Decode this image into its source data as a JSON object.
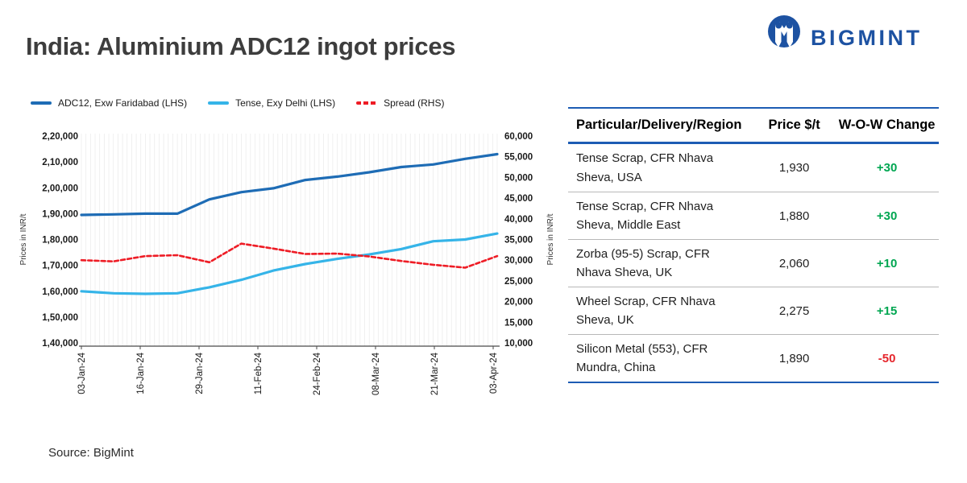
{
  "header": {
    "title": "India: Aluminium ADC12 ingot prices",
    "brand": "BIGMINT",
    "brand_color": "#1d52a2"
  },
  "chart_data": {
    "type": "line",
    "x_tick_labels": [
      "03-Jan-24",
      "16-Jan-24",
      "29-Jan-24",
      "11-Feb-24",
      "24-Feb-24",
      "08-Mar-24",
      "21-Mar-24",
      "03-Apr-24"
    ],
    "x_points": [
      "03-Jan",
      "10-Jan",
      "17-Jan",
      "24-Jan",
      "31-Jan",
      "07-Feb",
      "14-Feb",
      "21-Feb",
      "28-Feb",
      "06-Mar",
      "13-Mar",
      "20-Mar",
      "27-Mar",
      "03-Apr"
    ],
    "series": [
      {
        "name": "ADC12, Exw Faridabad (LHS)",
        "axis": "left",
        "color": "#1e6cb5",
        "style": "solid",
        "values": [
          189500,
          189700,
          190000,
          190000,
          195500,
          198300,
          199800,
          203000,
          204300,
          206000,
          208000,
          209000,
          211200,
          213000
        ]
      },
      {
        "name": "Tense, Exy Delhi (LHS)",
        "axis": "left",
        "color": "#35b4e8",
        "style": "solid",
        "values": [
          160000,
          159200,
          159000,
          159200,
          161500,
          164400,
          168000,
          170500,
          172500,
          174200,
          176300,
          179300,
          180000,
          182300
        ]
      },
      {
        "name": "Spread (RHS)",
        "axis": "right",
        "color": "#ee1c25",
        "style": "dashed",
        "values": [
          30000,
          29700,
          31000,
          31200,
          29500,
          34000,
          32800,
          31500,
          31600,
          30900,
          29800,
          28900,
          28200,
          31000
        ]
      }
    ],
    "left_axis": {
      "title": "Prices in INR/t",
      "min": 140000,
      "max": 220000,
      "tick_labels": [
        "2,20,000",
        "2,10,000",
        "2,00,000",
        "1,90,000",
        "1,80,000",
        "1,70,000",
        "1,60,000",
        "1,50,000",
        "1,40,000"
      ]
    },
    "right_axis": {
      "title": "Prices in INR/t",
      "min": 10000,
      "max": 60000,
      "tick_labels": [
        "60,000",
        "55,000",
        "50,000",
        "45,000",
        "40,000",
        "35,000",
        "30,000",
        "25,000",
        "20,000",
        "15,000",
        "10,000"
      ]
    },
    "gridlines": "vertical-fine",
    "legend_position": "top"
  },
  "table": {
    "columns": [
      "Particular/Delivery/Region",
      "Price $/t",
      "W-O-W Change"
    ],
    "rows": [
      {
        "particular": "Tense Scrap, CFR Nhava Sheva, USA",
        "price": "1,930",
        "change": "+30"
      },
      {
        "particular": "Tense Scrap, CFR Nhava Sheva, Middle East",
        "price": "1,880",
        "change": "+30"
      },
      {
        "particular": "Zorba (95-5) Scrap, CFR Nhava Sheva, UK",
        "price": "2,060",
        "change": "+10"
      },
      {
        "particular": "Wheel Scrap, CFR Nhava Sheva, UK",
        "price": "2,275",
        "change": "+15"
      },
      {
        "particular": "Silicon Metal (553), CFR Mundra, China",
        "price": "1,890",
        "change": "-50"
      }
    ],
    "positive_color": "#00a651",
    "negative_color": "#e5262c",
    "border_color": "#1d5cb4"
  },
  "footer": {
    "source": "Source: BigMint"
  }
}
